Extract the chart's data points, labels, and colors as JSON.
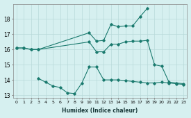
{
  "xlabel": "Humidex (Indice chaleur)",
  "bg_color": "#d6f0f0",
  "line_color": "#1a7a6e",
  "grid_color": "#b8dada",
  "xlim": [
    -0.5,
    23.5
  ],
  "ylim": [
    12.8,
    19.0
  ],
  "yticks": [
    13,
    14,
    15,
    16,
    17,
    18
  ],
  "xticks": [
    0,
    1,
    2,
    3,
    4,
    5,
    6,
    7,
    8,
    9,
    10,
    11,
    12,
    13,
    14,
    15,
    16,
    17,
    18,
    19,
    20,
    21,
    22,
    23
  ],
  "line1_x": [
    0,
    1,
    2,
    3,
    10,
    11,
    12,
    13,
    14,
    15,
    16,
    17,
    18
  ],
  "line1_y": [
    16.1,
    16.1,
    16.0,
    16.0,
    17.1,
    16.55,
    16.6,
    17.65,
    17.5,
    17.55,
    17.55,
    18.15,
    18.7
  ],
  "line2_x": [
    0,
    1,
    2,
    3,
    10,
    11,
    12,
    13,
    14,
    15,
    16,
    17,
    18,
    19,
    20,
    21,
    22,
    23
  ],
  "line2_y": [
    16.1,
    16.1,
    16.0,
    16.0,
    16.5,
    15.85,
    15.85,
    16.35,
    16.35,
    16.5,
    16.55,
    16.55,
    16.6,
    15.0,
    14.9,
    13.85,
    13.8,
    13.75
  ],
  "line3_x": [
    3,
    4,
    5,
    6,
    7,
    8,
    9,
    10,
    11,
    12,
    13,
    14,
    15,
    16,
    17,
    18,
    19,
    20,
    21,
    22,
    23
  ],
  "line3_y": [
    14.1,
    13.85,
    13.6,
    13.5,
    13.15,
    13.1,
    13.8,
    14.85,
    14.85,
    14.0,
    14.0,
    14.0,
    13.95,
    13.9,
    13.85,
    13.8,
    13.8,
    13.85,
    13.8,
    13.75,
    13.7
  ],
  "marker": "D",
  "marker_size": 1.8,
  "linewidth": 0.8
}
